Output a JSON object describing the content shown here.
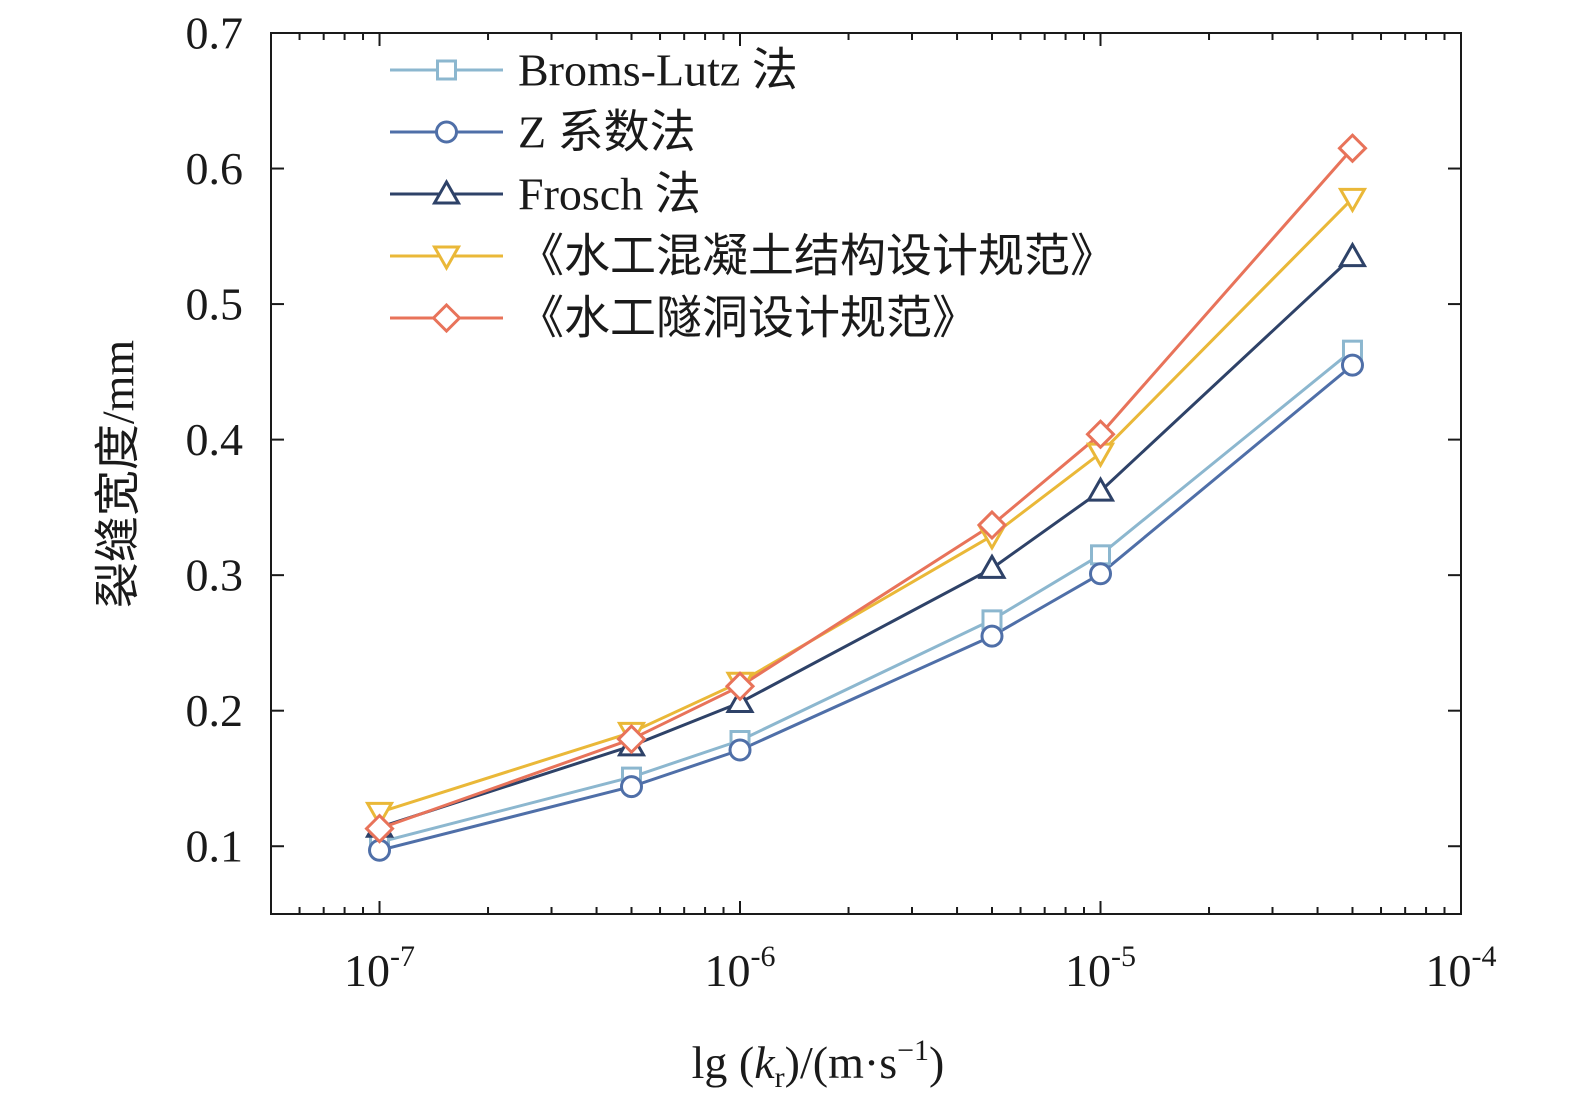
{
  "chart_data": {
    "type": "line",
    "xscale": "log",
    "x": [
      1e-07,
      5e-07,
      1e-06,
      5e-06,
      1e-05,
      5e-05
    ],
    "xlim": [
      5e-08,
      0.0001
    ],
    "ylim": [
      0.05,
      0.7
    ],
    "xlabel": {
      "prefix": "lg (",
      "var": "k",
      "sub": "r",
      "mid": ")/(m·s",
      "sup": "−1",
      "suffix": ")"
    },
    "ylabel": "裂缝宽度/mm",
    "xticks": [
      {
        "base": "10",
        "exp": "-7"
      },
      {
        "base": "10",
        "exp": "-6"
      },
      {
        "base": "10",
        "exp": "-5"
      },
      {
        "base": "10",
        "exp": "-4"
      }
    ],
    "yticks": [
      "0.1",
      "0.2",
      "0.3",
      "0.4",
      "0.5",
      "0.6",
      "0.7"
    ],
    "grid": false,
    "legend_position": "top-left",
    "series": [
      {
        "name": "Broms-Lutz 法",
        "marker": "square",
        "color": "#8cb7cf",
        "values": [
          0.103,
          0.151,
          0.178,
          0.267,
          0.315,
          0.466
        ]
      },
      {
        "name": "Z 系数法",
        "marker": "circle",
        "color": "#4f6fa8",
        "values": [
          0.097,
          0.144,
          0.171,
          0.255,
          0.301,
          0.455
        ]
      },
      {
        "name": "Frosch 法",
        "marker": "triangle-up",
        "color": "#2e4268",
        "values": [
          0.114,
          0.174,
          0.206,
          0.305,
          0.362,
          0.535
        ]
      },
      {
        "name": "《水工混凝土结构设计规范》",
        "marker": "triangle-down",
        "color": "#eab838",
        "values": [
          0.125,
          0.184,
          0.221,
          0.329,
          0.39,
          0.578
        ]
      },
      {
        "name": "《水工隧洞设计规范》",
        "marker": "diamond",
        "color": "#e8735a",
        "values": [
          0.113,
          0.179,
          0.218,
          0.337,
          0.404,
          0.615
        ]
      }
    ]
  }
}
